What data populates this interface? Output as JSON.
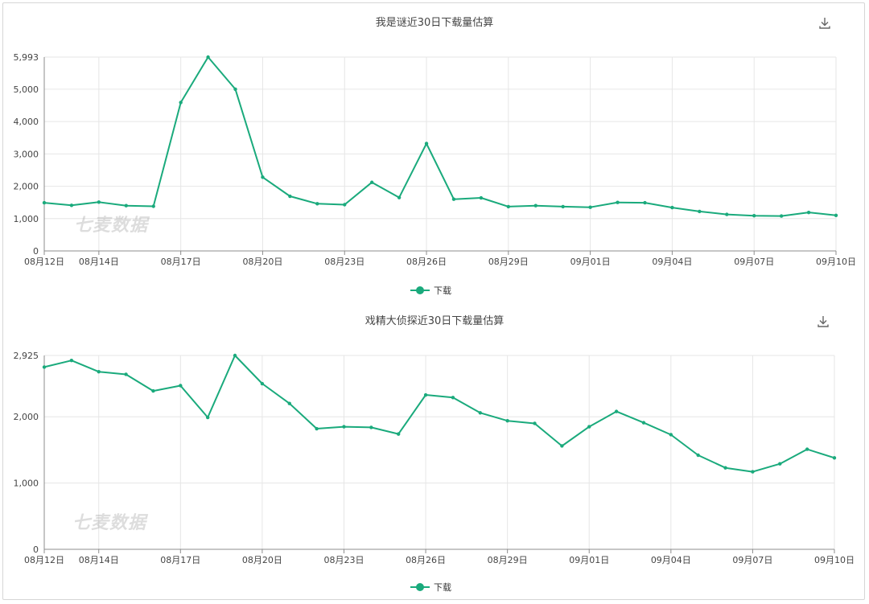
{
  "colors": {
    "line": "#1aaa7c",
    "grid": "#e6e6e6",
    "axis": "#8c8c8c"
  },
  "icons": {
    "download": "download-icon"
  },
  "watermark": "七麦数据",
  "chart_data": [
    {
      "type": "line",
      "title": "我是谜近30日下载量估算",
      "legend": "下载",
      "ylim": [
        0,
        5993
      ],
      "yticks": [
        "0",
        "1,000",
        "2,000",
        "3,000",
        "4,000",
        "5,000",
        "5,993"
      ],
      "ytick_values": [
        0,
        1000,
        2000,
        3000,
        4000,
        5000,
        5993
      ],
      "x_ticks": [
        "08月12日",
        "08月14日",
        "08月17日",
        "08月20日",
        "08月23日",
        "08月26日",
        "08月29日",
        "09月01日",
        "09月04日",
        "09月07日",
        "09月10日"
      ],
      "x_tick_index": [
        0,
        2,
        5,
        8,
        11,
        14,
        17,
        20,
        23,
        26,
        29
      ],
      "categories": [
        "08月12日",
        "08月13日",
        "08月14日",
        "08月15日",
        "08月16日",
        "08月17日",
        "08月18日",
        "08月19日",
        "08月20日",
        "08月21日",
        "08月22日",
        "08月23日",
        "08月24日",
        "08月25日",
        "08月26日",
        "08月27日",
        "08月28日",
        "08月29日",
        "08月30日",
        "08月31日",
        "09月01日",
        "09月02日",
        "09月03日",
        "09月04日",
        "09月05日",
        "09月06日",
        "09月07日",
        "09月08日",
        "09月09日",
        "09月10日"
      ],
      "series": [
        {
          "name": "下载",
          "values": [
            1490,
            1410,
            1510,
            1400,
            1380,
            4590,
            5993,
            5000,
            2280,
            1690,
            1460,
            1430,
            2120,
            1650,
            3320,
            1600,
            1640,
            1370,
            1400,
            1370,
            1350,
            1500,
            1490,
            1340,
            1220,
            1130,
            1090,
            1080,
            1190,
            1100
          ]
        }
      ]
    },
    {
      "type": "line",
      "title": "戏精大侦探近30日下载量估算",
      "legend": "下载",
      "ylim": [
        0,
        2925
      ],
      "yticks": [
        "0",
        "1,000",
        "2,000",
        "2,925"
      ],
      "ytick_values": [
        0,
        1000,
        2000,
        2925
      ],
      "x_ticks": [
        "08月12日",
        "08月14日",
        "08月17日",
        "08月20日",
        "08月23日",
        "08月26日",
        "08月29日",
        "09月01日",
        "09月04日",
        "09月07日",
        "09月10日"
      ],
      "x_tick_index": [
        0,
        2,
        5,
        8,
        11,
        14,
        17,
        20,
        23,
        26,
        29
      ],
      "categories": [
        "08月12日",
        "08月13日",
        "08月14日",
        "08月15日",
        "08月16日",
        "08月17日",
        "08月18日",
        "08月19日",
        "08月20日",
        "08月21日",
        "08月22日",
        "08月23日",
        "08月24日",
        "08月25日",
        "08月26日",
        "08月27日",
        "08月28日",
        "08月29日",
        "08月30日",
        "08月31日",
        "09月01日",
        "09月02日",
        "09月03日",
        "09月04日",
        "09月05日",
        "09月06日",
        "09月07日",
        "09月08日",
        "09月09日",
        "09月10日"
      ],
      "series": [
        {
          "name": "下载",
          "values": [
            2750,
            2850,
            2680,
            2640,
            2390,
            2470,
            1990,
            2925,
            2500,
            2200,
            1820,
            1850,
            1840,
            1740,
            2330,
            2290,
            2060,
            1940,
            1900,
            1560,
            1850,
            2080,
            1910,
            1730,
            1420,
            1230,
            1170,
            1290,
            1510,
            1380
          ]
        }
      ]
    }
  ]
}
